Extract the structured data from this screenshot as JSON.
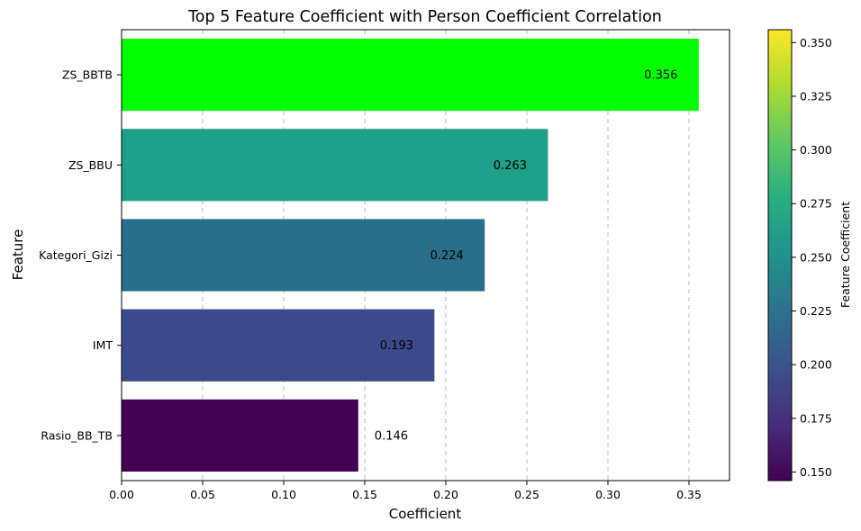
{
  "chart_data": {
    "type": "bar",
    "orientation": "horizontal",
    "title": "Top 5 Feature Coefficient with Person Coefficient Correlation",
    "xlabel": "Coefficient",
    "ylabel": "Feature",
    "categories": [
      "ZS_BBTB",
      "ZS_BBU",
      "Kategori_Gizi",
      "IMT",
      "Rasio_BB_TB"
    ],
    "values": [
      0.356,
      0.263,
      0.224,
      0.193,
      0.146
    ],
    "data_labels": [
      "0.356",
      "0.263",
      "0.224",
      "0.193",
      "0.146"
    ],
    "bar_colors": [
      "#00ff00",
      "#1fa088",
      "#2a6f8a",
      "#3b4a8a",
      "#440154"
    ],
    "xlim": [
      0,
      0.375
    ],
    "x_ticks": [
      0.0,
      0.05,
      0.1,
      0.15,
      0.2,
      0.25,
      0.3,
      0.35
    ],
    "x_tick_labels": [
      "0.00",
      "0.05",
      "0.10",
      "0.15",
      "0.20",
      "0.25",
      "0.30",
      "0.35"
    ],
    "grid": "x-axis dashed",
    "colorbar": {
      "label": "Feature Coefficient",
      "range": [
        0.146,
        0.356
      ],
      "colormap": "viridis",
      "ticks": [
        0.15,
        0.175,
        0.2,
        0.225,
        0.25,
        0.275,
        0.3,
        0.325,
        0.35
      ],
      "tick_labels": [
        "0.150",
        "0.175",
        "0.200",
        "0.225",
        "0.250",
        "0.275",
        "0.300",
        "0.325",
        "0.350"
      ]
    }
  }
}
